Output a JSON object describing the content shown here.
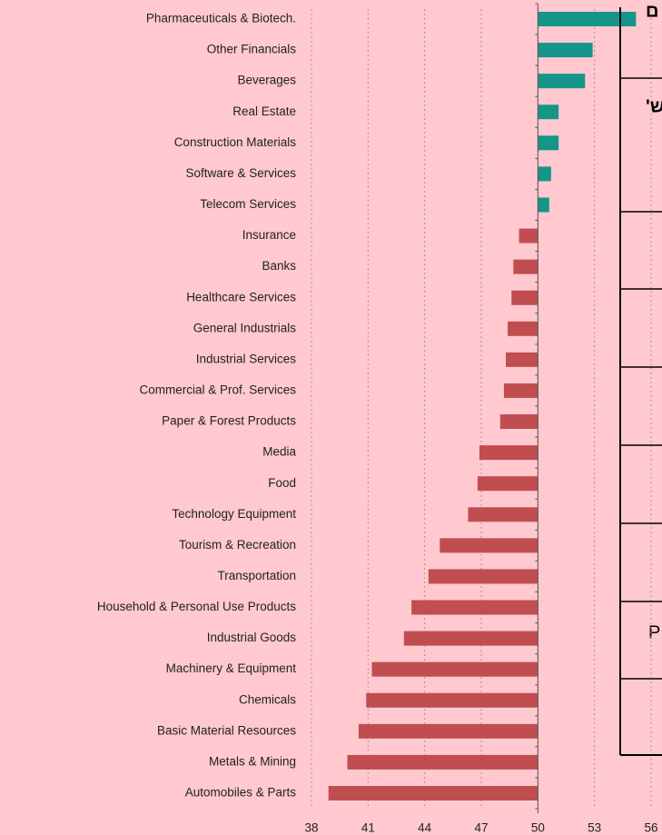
{
  "chart_data": {
    "type": "bar",
    "orientation": "horizontal",
    "categories": [
      "Pharmaceuticals & Biotech.",
      "Other Financials",
      "Beverages",
      "Real Estate",
      "Construction Materials",
      "Software & Services",
      "Telecom Services",
      "Insurance",
      "Banks",
      "Healthcare Services",
      "General Industrials",
      "Industrial Services",
      "Commercial & Prof. Services",
      "Paper & Forest Products",
      "Media",
      "Food",
      "Technology Equipment",
      "Tourism & Recreation",
      "Transportation",
      "Household & Personal Use Products",
      "Industrial Goods",
      "Machinery & Equipment",
      "Chemicals",
      "Basic Material Resources",
      "Metals & Mining",
      "Automobiles & Parts"
    ],
    "values": [
      55.2,
      52.9,
      52.5,
      51.1,
      51.1,
      50.7,
      50.6,
      49.0,
      48.7,
      48.6,
      48.4,
      48.3,
      48.2,
      48.0,
      46.9,
      46.8,
      46.3,
      44.8,
      44.2,
      43.3,
      42.9,
      41.2,
      40.9,
      40.5,
      39.9,
      38.9
    ],
    "baseline": 50,
    "colors": {
      "above": "#16958a",
      "below": "#c04e50"
    },
    "xlim": [
      38,
      56
    ],
    "xticks": [
      38,
      41,
      44,
      47,
      50,
      53,
      56
    ],
    "grid": true,
    "overlay_text": [
      "ם",
      "'ש",
      "P"
    ]
  }
}
